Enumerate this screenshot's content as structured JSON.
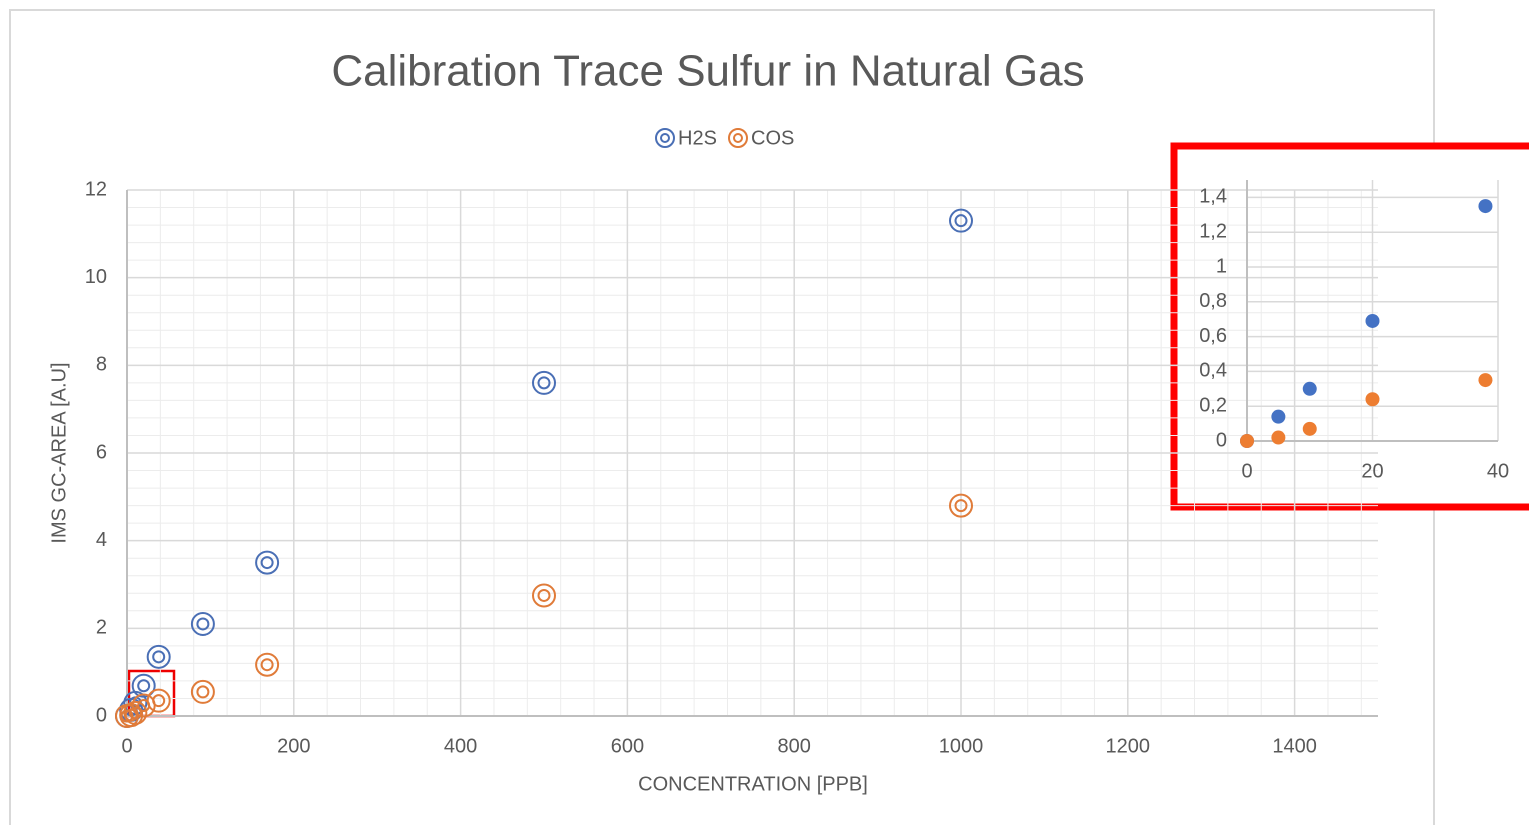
{
  "chart_data": [
    {
      "type": "scatter",
      "title": "Calibration Trace Sulfur in Natural Gas",
      "x_label": "CONCENTRATION [PPB]",
      "y_label": "IMS GC-AREA [A.U]",
      "x": [
        0,
        5,
        10,
        20,
        38,
        91,
        168,
        500,
        1000
      ],
      "series": [
        {
          "name": "H2S",
          "color": "#4a6fb5",
          "values": [
            0,
            0.14,
            0.3,
            0.69,
            1.35,
            2.1,
            3.5,
            7.6,
            11.3
          ]
        },
        {
          "name": "COS",
          "color": "#e07b39",
          "values": [
            0,
            0.02,
            0.07,
            0.24,
            0.35,
            0.55,
            1.17,
            2.75,
            4.8
          ]
        }
      ],
      "xlim": [
        0,
        1500
      ],
      "xticks": [
        0,
        200,
        400,
        600,
        800,
        1000,
        1200,
        1400
      ],
      "ylim": [
        0,
        12
      ],
      "yticks": [
        0,
        2,
        4,
        6,
        8,
        10,
        12
      ],
      "grid": true,
      "minor_grid": true,
      "marker": "ring",
      "legend": "top"
    },
    {
      "type": "scatter",
      "x": [
        0,
        5,
        10,
        20,
        38
      ],
      "series": [
        {
          "color": "#4472c4",
          "values": [
            0,
            0.14,
            0.3,
            0.69,
            1.35
          ]
        },
        {
          "color": "#ed7d31",
          "values": [
            0,
            0.02,
            0.07,
            0.24,
            0.35
          ]
        }
      ],
      "xlim": [
        0,
        40
      ],
      "xticks": [
        0,
        20,
        40
      ],
      "ylim": [
        0,
        1.5
      ],
      "yticks": [
        0,
        {
          "value": 0.2,
          "label": "0,2"
        },
        {
          "value": 0.4,
          "label": "0,4"
        },
        {
          "value": 0.6,
          "label": "0,6"
        },
        {
          "value": 0.8,
          "label": "0,8"
        },
        1,
        {
          "value": 1.2,
          "label": "1,2"
        },
        {
          "value": 1.4,
          "label": "1,4"
        }
      ],
      "grid": true,
      "minor_grid": false,
      "marker": "filled"
    }
  ]
}
